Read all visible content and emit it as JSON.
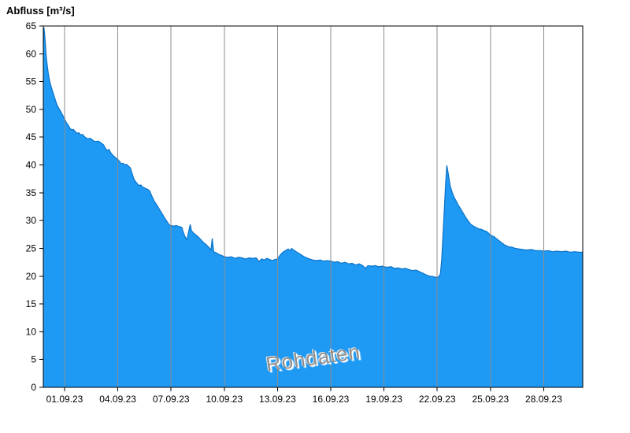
{
  "chart_data": {
    "type": "area",
    "title": "Abfluss [m³/s]",
    "watermark": "Rohdaten",
    "xlabel": "",
    "ylabel": "Abfluss [m³/s]",
    "x_axis": {
      "unit": "days",
      "range_days": [
        0,
        30.4
      ],
      "ticks": [
        {
          "t": 1.2,
          "label": "01.09.23"
        },
        {
          "t": 4.2,
          "label": "04.09.23"
        },
        {
          "t": 7.2,
          "label": "07.09.23"
        },
        {
          "t": 10.2,
          "label": "10.09.23"
        },
        {
          "t": 13.2,
          "label": "13.09.23"
        },
        {
          "t": 16.2,
          "label": "16.09.23"
        },
        {
          "t": 19.2,
          "label": "19.09.23"
        },
        {
          "t": 22.2,
          "label": "22.09.23"
        },
        {
          "t": 25.2,
          "label": "25.09.23"
        },
        {
          "t": 28.2,
          "label": "28.09.23"
        }
      ],
      "grid": true
    },
    "y_axis": {
      "min": 0,
      "max": 65,
      "step": 5,
      "tick_labels": [
        "0",
        "5",
        "10",
        "15",
        "20",
        "25",
        "30",
        "35",
        "40",
        "45",
        "50",
        "55",
        "60",
        "65"
      ],
      "grid": false
    },
    "colors": {
      "fill": "#1e9af5",
      "line": "#0b72c8",
      "grid": "#8c8c8c",
      "axis": "#000000",
      "text": "#000000",
      "watermark": "#8f8f8f",
      "background": "#ffffff"
    },
    "series": [
      {
        "name": "Abfluss Rohdaten",
        "points": [
          [
            0.0,
            61.5
          ],
          [
            0.04,
            64.7
          ],
          [
            0.1,
            62.5
          ],
          [
            0.15,
            60.0
          ],
          [
            0.2,
            58.5
          ],
          [
            0.28,
            56.5
          ],
          [
            0.35,
            55.2
          ],
          [
            0.45,
            54.0
          ],
          [
            0.55,
            53.0
          ],
          [
            0.65,
            52.0
          ],
          [
            0.75,
            51.0
          ],
          [
            0.85,
            50.3
          ],
          [
            0.95,
            49.8
          ],
          [
            1.05,
            49.2
          ],
          [
            1.2,
            48.3
          ],
          [
            1.3,
            47.6
          ],
          [
            1.4,
            47.2
          ],
          [
            1.5,
            46.6
          ],
          [
            1.6,
            46.3
          ],
          [
            1.7,
            46.4
          ],
          [
            1.8,
            46.0
          ],
          [
            1.9,
            45.7
          ],
          [
            2.0,
            45.8
          ],
          [
            2.1,
            45.4
          ],
          [
            2.2,
            45.5
          ],
          [
            2.35,
            45.0
          ],
          [
            2.5,
            44.7
          ],
          [
            2.65,
            44.8
          ],
          [
            2.8,
            44.4
          ],
          [
            2.95,
            44.2
          ],
          [
            3.1,
            44.3
          ],
          [
            3.25,
            44.0
          ],
          [
            3.4,
            43.6
          ],
          [
            3.5,
            43.0
          ],
          [
            3.6,
            42.6
          ],
          [
            3.7,
            42.8
          ],
          [
            3.8,
            42.2
          ],
          [
            3.9,
            41.8
          ],
          [
            4.0,
            41.5
          ],
          [
            4.1,
            41.2
          ],
          [
            4.2,
            41.0
          ],
          [
            4.3,
            40.6
          ],
          [
            4.4,
            40.2
          ],
          [
            4.5,
            40.3
          ],
          [
            4.6,
            40.0
          ],
          [
            4.7,
            40.1
          ],
          [
            4.8,
            39.8
          ],
          [
            4.9,
            39.5
          ],
          [
            5.0,
            38.5
          ],
          [
            5.1,
            37.5
          ],
          [
            5.2,
            37.0
          ],
          [
            5.3,
            36.6
          ],
          [
            5.4,
            36.3
          ],
          [
            5.5,
            36.4
          ],
          [
            5.6,
            36.0
          ],
          [
            5.7,
            35.9
          ],
          [
            5.8,
            35.7
          ],
          [
            5.9,
            35.6
          ],
          [
            6.0,
            35.3
          ],
          [
            6.1,
            34.5
          ],
          [
            6.25,
            33.5
          ],
          [
            6.4,
            32.8
          ],
          [
            6.55,
            32.0
          ],
          [
            6.7,
            31.2
          ],
          [
            6.85,
            30.4
          ],
          [
            7.0,
            29.7
          ],
          [
            7.1,
            29.2
          ],
          [
            7.2,
            29.1
          ],
          [
            7.35,
            29.0
          ],
          [
            7.5,
            29.1
          ],
          [
            7.65,
            28.9
          ],
          [
            7.8,
            28.8
          ],
          [
            7.9,
            27.8
          ],
          [
            8.0,
            27.0
          ],
          [
            8.1,
            26.6
          ],
          [
            8.2,
            28.2
          ],
          [
            8.28,
            29.3
          ],
          [
            8.35,
            28.2
          ],
          [
            8.45,
            27.8
          ],
          [
            8.6,
            27.4
          ],
          [
            8.75,
            27.0
          ],
          [
            8.9,
            26.5
          ],
          [
            9.05,
            26.0
          ],
          [
            9.2,
            25.6
          ],
          [
            9.35,
            25.1
          ],
          [
            9.45,
            24.7
          ],
          [
            9.52,
            26.8
          ],
          [
            9.6,
            24.4
          ],
          [
            9.75,
            24.2
          ],
          [
            9.9,
            23.9
          ],
          [
            10.05,
            23.7
          ],
          [
            10.2,
            23.5
          ],
          [
            10.4,
            23.4
          ],
          [
            10.6,
            23.5
          ],
          [
            10.8,
            23.2
          ],
          [
            11.0,
            23.4
          ],
          [
            11.2,
            23.3
          ],
          [
            11.4,
            23.1
          ],
          [
            11.6,
            23.3
          ],
          [
            11.8,
            23.2
          ],
          [
            12.0,
            23.3
          ],
          [
            12.15,
            22.6
          ],
          [
            12.3,
            23.1
          ],
          [
            12.45,
            22.9
          ],
          [
            12.6,
            23.2
          ],
          [
            12.75,
            23.0
          ],
          [
            12.9,
            22.8
          ],
          [
            13.05,
            23.0
          ],
          [
            13.2,
            23.1
          ],
          [
            13.35,
            23.8
          ],
          [
            13.5,
            24.3
          ],
          [
            13.65,
            24.6
          ],
          [
            13.8,
            24.9
          ],
          [
            13.9,
            24.6
          ],
          [
            14.0,
            25.0
          ],
          [
            14.1,
            24.7
          ],
          [
            14.25,
            24.4
          ],
          [
            14.4,
            24.1
          ],
          [
            14.55,
            23.8
          ],
          [
            14.7,
            23.5
          ],
          [
            14.85,
            23.3
          ],
          [
            15.0,
            23.1
          ],
          [
            15.2,
            22.9
          ],
          [
            15.4,
            22.8
          ],
          [
            15.6,
            22.9
          ],
          [
            15.8,
            22.7
          ],
          [
            16.0,
            22.8
          ],
          [
            16.2,
            22.7
          ],
          [
            16.4,
            22.5
          ],
          [
            16.6,
            22.6
          ],
          [
            16.8,
            22.3
          ],
          [
            17.0,
            22.5
          ],
          [
            17.2,
            22.2
          ],
          [
            17.4,
            22.3
          ],
          [
            17.6,
            22.0
          ],
          [
            17.8,
            22.2
          ],
          [
            18.0,
            21.9
          ],
          [
            18.15,
            21.4
          ],
          [
            18.3,
            21.9
          ],
          [
            18.5,
            21.8
          ],
          [
            18.7,
            21.9
          ],
          [
            18.9,
            21.7
          ],
          [
            19.1,
            21.8
          ],
          [
            19.2,
            21.7
          ],
          [
            19.4,
            21.6
          ],
          [
            19.6,
            21.7
          ],
          [
            19.8,
            21.4
          ],
          [
            20.0,
            21.5
          ],
          [
            20.2,
            21.3
          ],
          [
            20.4,
            21.4
          ],
          [
            20.6,
            21.2
          ],
          [
            20.8,
            21.0
          ],
          [
            21.0,
            21.1
          ],
          [
            21.2,
            20.8
          ],
          [
            21.4,
            20.5
          ],
          [
            21.6,
            20.2
          ],
          [
            21.8,
            20.0
          ],
          [
            22.0,
            19.9
          ],
          [
            22.1,
            19.8
          ],
          [
            22.2,
            19.8
          ],
          [
            22.3,
            19.9
          ],
          [
            22.38,
            20.5
          ],
          [
            22.45,
            23.0
          ],
          [
            22.52,
            27.0
          ],
          [
            22.6,
            32.0
          ],
          [
            22.68,
            37.0
          ],
          [
            22.74,
            39.9
          ],
          [
            22.8,
            38.8
          ],
          [
            22.88,
            37.2
          ],
          [
            22.95,
            36.0
          ],
          [
            23.05,
            35.0
          ],
          [
            23.15,
            34.2
          ],
          [
            23.25,
            33.6
          ],
          [
            23.35,
            33.0
          ],
          [
            23.5,
            32.2
          ],
          [
            23.65,
            31.4
          ],
          [
            23.8,
            30.6
          ],
          [
            23.95,
            29.9
          ],
          [
            24.1,
            29.3
          ],
          [
            24.25,
            29.0
          ],
          [
            24.4,
            28.7
          ],
          [
            24.55,
            28.5
          ],
          [
            24.7,
            28.4
          ],
          [
            24.85,
            28.2
          ],
          [
            25.0,
            28.0
          ],
          [
            25.2,
            27.4
          ],
          [
            25.4,
            27.1
          ],
          [
            25.6,
            26.6
          ],
          [
            25.8,
            26.1
          ],
          [
            26.0,
            25.6
          ],
          [
            26.2,
            25.3
          ],
          [
            26.4,
            25.2
          ],
          [
            26.6,
            25.0
          ],
          [
            26.8,
            24.9
          ],
          [
            27.0,
            24.8
          ],
          [
            27.25,
            24.7
          ],
          [
            27.5,
            24.8
          ],
          [
            27.75,
            24.6
          ],
          [
            28.0,
            24.6
          ],
          [
            28.2,
            24.5
          ],
          [
            28.45,
            24.6
          ],
          [
            28.7,
            24.4
          ],
          [
            28.95,
            24.5
          ],
          [
            29.2,
            24.4
          ],
          [
            29.45,
            24.5
          ],
          [
            29.7,
            24.3
          ],
          [
            29.95,
            24.4
          ],
          [
            30.2,
            24.3
          ],
          [
            30.4,
            24.3
          ]
        ]
      }
    ]
  }
}
